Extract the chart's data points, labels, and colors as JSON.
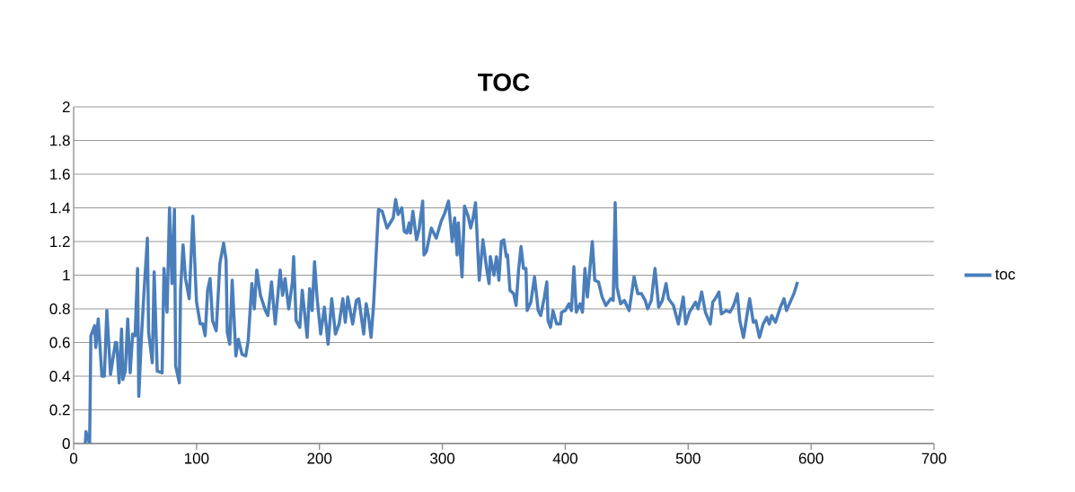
{
  "chart_data": {
    "type": "line",
    "title": "TOC",
    "x": [
      9.5,
      10,
      13,
      14,
      17,
      18,
      20,
      23,
      25,
      27,
      30,
      34,
      35,
      37,
      39,
      40,
      42,
      44,
      46,
      48,
      50,
      52,
      53,
      55,
      57,
      60,
      61,
      64,
      65.5,
      68,
      72,
      73.5,
      76,
      78,
      80,
      82,
      83,
      86,
      87,
      89,
      91,
      94,
      97,
      99,
      100,
      103,
      105,
      107,
      109,
      111,
      113,
      116,
      119,
      122,
      124,
      125,
      127,
      129,
      132,
      134,
      137,
      140,
      142,
      145,
      147,
      149,
      152,
      156,
      158,
      161,
      164,
      168,
      170,
      172,
      175,
      178,
      179,
      181,
      184,
      186,
      190,
      192,
      194,
      196,
      198,
      201,
      204,
      207,
      210,
      213,
      216,
      219,
      221,
      223,
      227,
      230,
      232,
      236,
      238,
      240,
      242,
      244,
      248,
      251,
      255,
      260,
      262,
      264,
      267,
      269,
      271,
      273,
      274,
      276,
      279,
      281,
      284,
      285,
      287,
      291,
      295,
      299,
      302,
      305,
      308,
      310,
      312,
      313,
      316,
      318,
      321,
      323,
      325,
      327,
      330,
      333,
      336,
      338,
      339,
      342,
      344,
      346,
      348,
      350,
      352,
      353,
      355,
      358,
      360,
      362,
      364,
      366,
      368,
      369,
      372,
      375,
      378,
      380,
      383,
      385,
      386,
      388,
      390,
      393,
      396,
      397,
      400,
      403,
      405,
      407,
      409,
      412,
      414,
      416,
      418,
      422,
      424,
      427,
      430,
      433,
      437,
      439,
      440.6,
      442,
      445,
      448,
      452,
      456,
      459,
      462,
      465,
      467,
      470,
      473,
      476,
      479,
      482,
      484,
      488,
      492,
      496,
      498,
      501,
      506,
      508,
      511,
      514,
      518,
      520,
      522,
      525,
      527,
      531,
      534,
      537,
      540,
      542,
      545,
      548,
      550,
      553,
      555,
      558,
      561,
      564,
      566,
      568,
      571,
      575,
      578,
      580,
      583,
      586,
      589
    ],
    "series": [
      {
        "name": "toc",
        "color": "#4a7ebb",
        "values": [
          0,
          0.07,
          0,
          0.64,
          0.7,
          0.57,
          0.74,
          0.4,
          0.4,
          0.79,
          0.41,
          0.6,
          0.6,
          0.36,
          0.68,
          0.38,
          0.43,
          0.74,
          0.42,
          0.65,
          0.64,
          1.04,
          0.28,
          0.61,
          0.87,
          1.22,
          0.66,
          0.48,
          1.02,
          0.43,
          0.42,
          1.04,
          0.78,
          1.4,
          0.95,
          1.39,
          0.46,
          0.36,
          0.91,
          1.18,
          0.98,
          0.86,
          1.35,
          1.0,
          0.84,
          0.71,
          0.71,
          0.64,
          0.91,
          0.98,
          0.73,
          0.67,
          1.07,
          1.19,
          1.09,
          0.66,
          0.59,
          0.97,
          0.52,
          0.62,
          0.53,
          0.52,
          0.61,
          0.95,
          0.8,
          1.03,
          0.88,
          0.79,
          0.76,
          0.96,
          0.71,
          1.03,
          0.88,
          0.98,
          0.8,
          0.96,
          1.11,
          0.73,
          0.69,
          0.91,
          0.63,
          0.92,
          0.79,
          1.08,
          0.87,
          0.65,
          0.81,
          0.59,
          0.86,
          0.65,
          0.71,
          0.86,
          0.72,
          0.87,
          0.71,
          0.85,
          0.86,
          0.65,
          0.83,
          0.75,
          0.63,
          0.82,
          1.39,
          1.38,
          1.28,
          1.34,
          1.45,
          1.36,
          1.4,
          1.26,
          1.25,
          1.31,
          1.25,
          1.38,
          1.21,
          1.27,
          1.44,
          1.12,
          1.14,
          1.28,
          1.22,
          1.32,
          1.37,
          1.44,
          1.2,
          1.34,
          1.12,
          1.31,
          0.99,
          1.41,
          1.35,
          1.28,
          1.34,
          1.43,
          0.97,
          1.21,
          1.04,
          0.95,
          1.11,
          1.0,
          1.11,
          0.97,
          1.2,
          1.21,
          1.11,
          1.12,
          0.91,
          0.89,
          0.82,
          1.03,
          1.17,
          1.04,
          1.04,
          0.79,
          0.84,
          0.99,
          0.79,
          0.76,
          0.87,
          0.96,
          0.73,
          0.69,
          0.79,
          0.71,
          0.71,
          0.78,
          0.79,
          0.83,
          0.79,
          1.05,
          0.78,
          0.83,
          0.78,
          1.04,
          0.87,
          1.2,
          0.97,
          0.96,
          0.87,
          0.82,
          0.86,
          0.85,
          1.43,
          0.93,
          0.83,
          0.85,
          0.79,
          0.99,
          0.89,
          0.89,
          0.85,
          0.8,
          0.85,
          1.04,
          0.81,
          0.85,
          0.95,
          0.86,
          0.82,
          0.71,
          0.87,
          0.71,
          0.78,
          0.84,
          0.8,
          0.9,
          0.78,
          0.71,
          0.84,
          0.86,
          0.9,
          0.77,
          0.79,
          0.78,
          0.82,
          0.89,
          0.73,
          0.63,
          0.77,
          0.86,
          0.72,
          0.73,
          0.63,
          0.71,
          0.75,
          0.71,
          0.76,
          0.72,
          0.81,
          0.86,
          0.79,
          0.84,
          0.89,
          0.96
        ]
      }
    ],
    "xlim": [
      0,
      700
    ],
    "xticks": [
      0,
      100,
      200,
      300,
      400,
      500,
      600,
      700
    ],
    "ylim": [
      0,
      2
    ],
    "yticks": [
      0,
      0.2,
      0.4,
      0.6,
      0.8,
      1,
      1.2,
      1.4,
      1.6,
      1.8,
      2
    ],
    "grid": "y",
    "legend": "right",
    "marker": "none",
    "line_style": "solid"
  }
}
